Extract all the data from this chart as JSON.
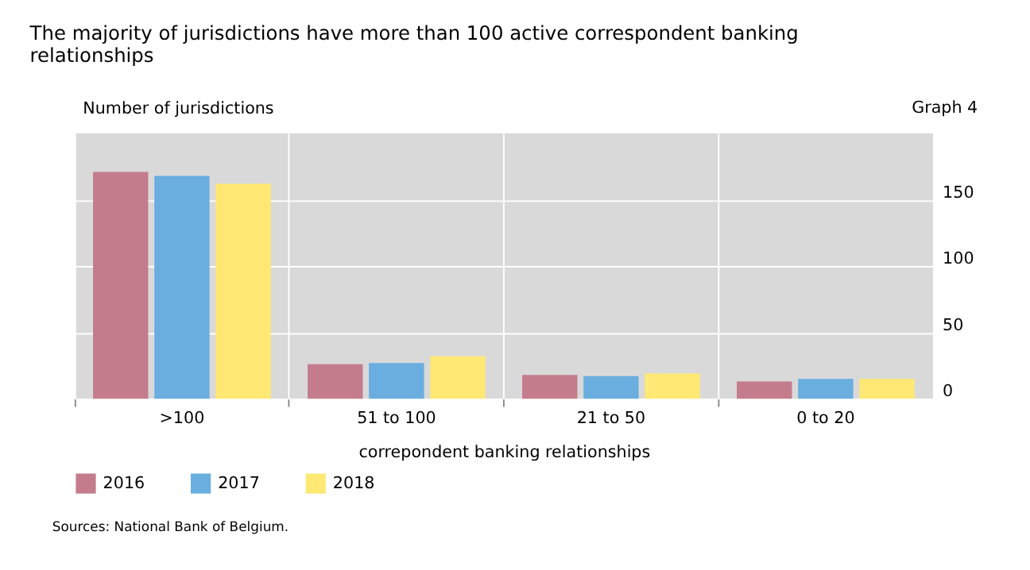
{
  "chart_data": {
    "type": "bar",
    "title": "The majority of jurisdictions have more than 100 active correspondent banking relationships",
    "ylabel": "Number of jurisdictions",
    "xlabel": "correpondent banking relationships",
    "categories": [
      ">100",
      "51 to 100",
      "21 to 50",
      "0 to 20"
    ],
    "series": [
      {
        "name": "2016",
        "color": "#c47c8c",
        "values": [
          171,
          26,
          18,
          13
        ]
      },
      {
        "name": "2017",
        "color": "#6aaee0",
        "values": [
          168,
          27,
          17,
          15
        ]
      },
      {
        "name": "2018",
        "color": "#ffe873",
        "values": [
          162,
          32,
          19,
          15
        ]
      }
    ],
    "ylim": [
      0,
      200
    ],
    "yticks": [
      0,
      50,
      100,
      150
    ],
    "grid": true,
    "legend": "bottom left",
    "annotations": [
      "Graph 4",
      "Sources: National Bank of Belgium."
    ]
  }
}
